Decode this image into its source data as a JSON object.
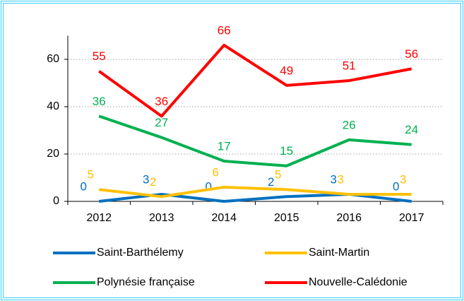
{
  "chart_data": {
    "type": "line",
    "categories": [
      "2012",
      "2013",
      "2014",
      "2015",
      "2016",
      "2017"
    ],
    "series": [
      {
        "name": "Saint-Barthélemy",
        "color": "#0070c0",
        "values": [
          0,
          3,
          0,
          2,
          3,
          0
        ]
      },
      {
        "name": "Saint-Martin",
        "color": "#ffc000",
        "values": [
          5,
          2,
          6,
          5,
          3,
          3
        ]
      },
      {
        "name": "Polynésie française",
        "color": "#00b050",
        "values": [
          36,
          27,
          17,
          15,
          26,
          24
        ]
      },
      {
        "name": "Nouvelle-Calédonie",
        "color": "#ff0000",
        "values": [
          55,
          36,
          66,
          49,
          51,
          56
        ]
      }
    ],
    "ylim": [
      0,
      70
    ],
    "yticks": [
      0,
      20,
      40,
      60
    ],
    "grid": true
  }
}
